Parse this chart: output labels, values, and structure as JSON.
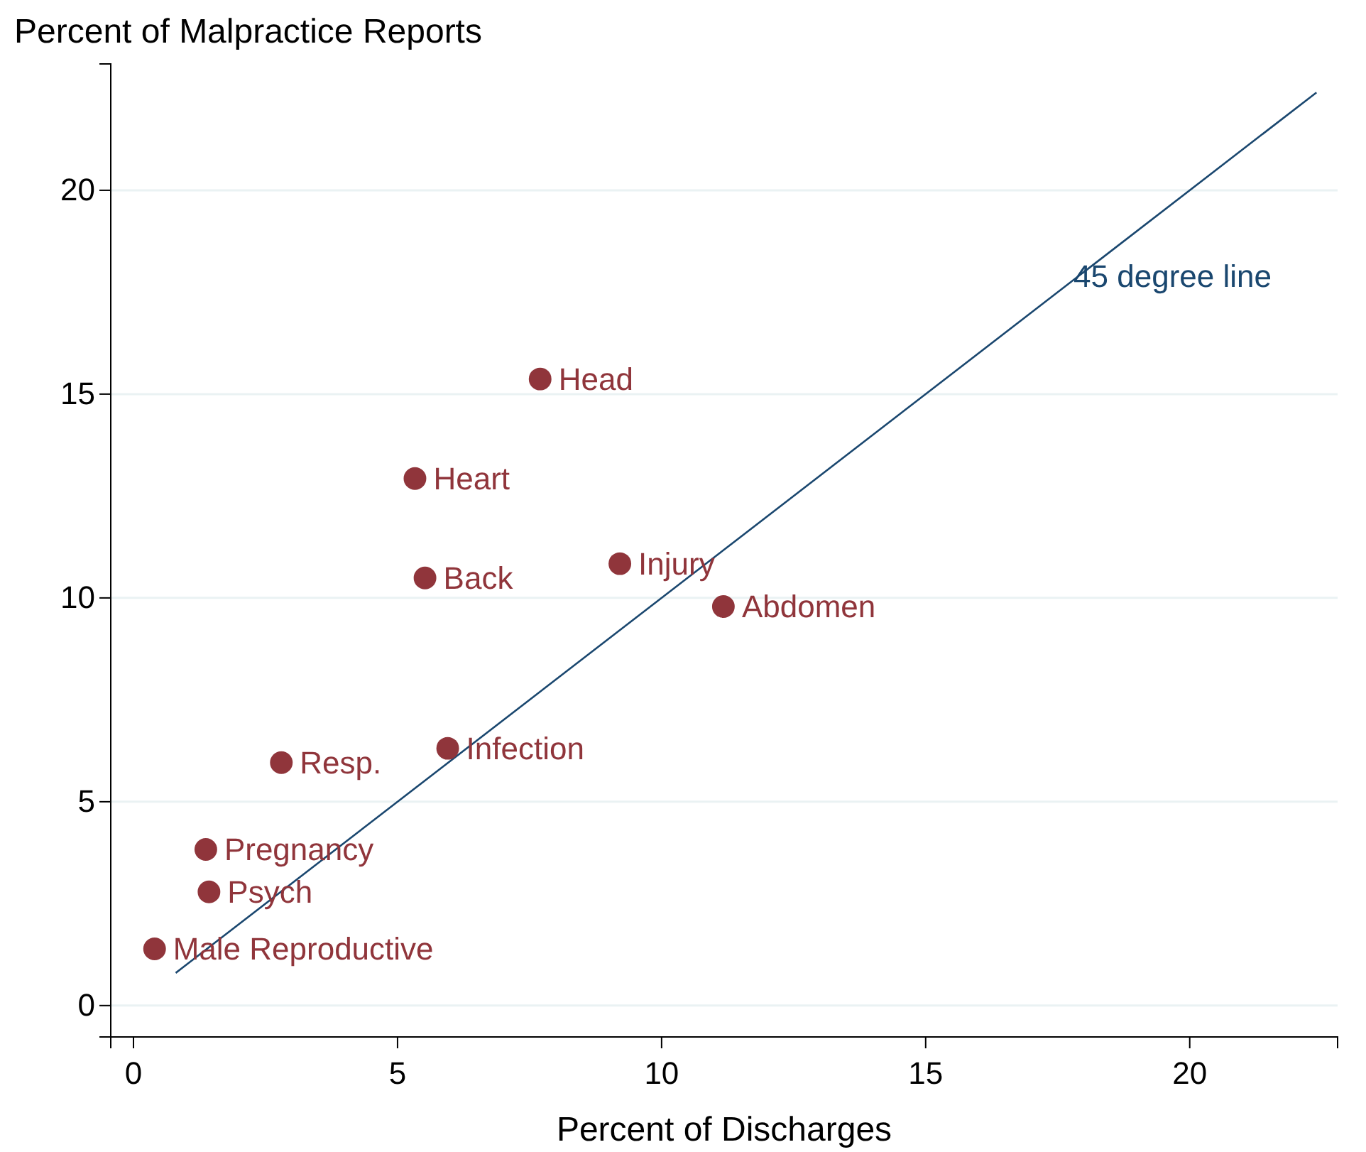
{
  "chart_data": {
    "type": "scatter",
    "ylabel": "Percent of Malpractice Reports",
    "xlabel": "Percent of Discharges",
    "xlim": [
      -0.43,
      22.8
    ],
    "ylim": [
      -0.77,
      23.1
    ],
    "xticks": [
      0,
      5,
      10,
      15,
      20
    ],
    "yticks": [
      0,
      5,
      10,
      15,
      20
    ],
    "grid": "y",
    "series": [
      {
        "type": "line",
        "color": "#1a476f",
        "x": [
          0.8,
          22.4
        ],
        "values": [
          0.8,
          22.4
        ]
      },
      {
        "marker": "circle",
        "color": "#90353b",
        "x": [
          7.7,
          5.33,
          5.52,
          9.21,
          11.17,
          5.95,
          2.8,
          1.37,
          1.43,
          0.4
        ],
        "values": [
          15.37,
          12.93,
          10.49,
          10.84,
          9.79,
          6.31,
          5.96,
          3.83,
          2.79,
          1.39
        ]
      }
    ],
    "annotations": [
      {
        "text": "Head",
        "x": 7.7,
        "y": 15.37
      },
      {
        "text": "Heart",
        "x": 5.33,
        "y": 12.93
      },
      {
        "text": "Back",
        "x": 5.52,
        "y": 10.49
      },
      {
        "text": "Injury",
        "x": 9.21,
        "y": 10.84
      },
      {
        "text": "Abdomen",
        "x": 11.17,
        "y": 9.79
      },
      {
        "text": "Infection",
        "x": 5.95,
        "y": 6.31
      },
      {
        "text": "Resp.",
        "x": 2.8,
        "y": 5.96
      },
      {
        "text": "Pregnancy",
        "x": 1.37,
        "y": 3.83
      },
      {
        "text": "Psych",
        "x": 1.43,
        "y": 2.79
      },
      {
        "text": "Male Reproductive",
        "x": 0.4,
        "y": 1.39
      },
      {
        "text": "45 degree line",
        "x": 17.8,
        "y": 17.9
      }
    ]
  }
}
